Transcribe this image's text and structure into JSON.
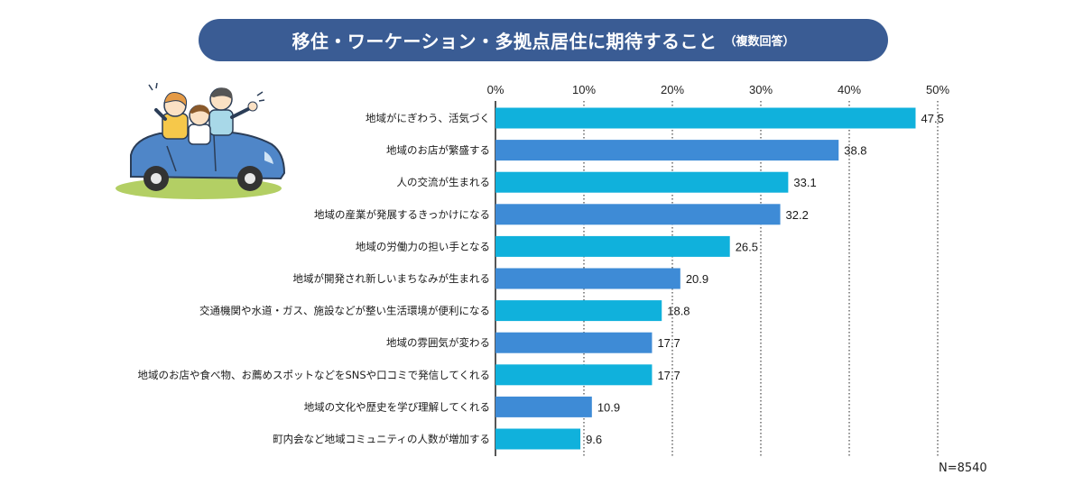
{
  "header": {
    "title": "移住・ワーケーション・多拠点居住に期待すること",
    "subtitle": "（複数回答）"
  },
  "colors": {
    "title_bg": "#3a5c94",
    "bar_cyan": "#10b1dc",
    "bar_blue": "#3e8bd6",
    "grid": "#1f1f1f"
  },
  "illustration": {
    "icon": "family-in-car-icon"
  },
  "chart_data": {
    "type": "bar",
    "orientation": "horizontal",
    "categories": [
      "地域がにぎわう、活気づく",
      "地域のお店が繁盛する",
      "人の交流が生まれる",
      "地域の産業が発展するきっかけになる",
      "地域の労働力の担い手となる",
      "地域が開発され新しいまちなみが生まれる",
      "交通機関や水道・ガス、施設などが整い生活環境が便利になる",
      "地域の雰囲気が変わる",
      "地域のお店や食べ物、お薦めスポットなどをSNSや口コミで発信してくれる",
      "地域の文化や歴史を学び理解してくれる",
      "町内会など地域コミュニティの人数が増加する"
    ],
    "values": [
      47.5,
      38.8,
      33.1,
      32.2,
      26.5,
      20.9,
      18.8,
      17.7,
      17.7,
      10.9,
      9.6
    ],
    "value_labels": [
      "47.5",
      "38.8",
      "33.1",
      "32.2",
      "26.5",
      "20.9",
      "18.8",
      "17.7",
      "17.7",
      "10.9",
      "9.6"
    ],
    "xlim": [
      0,
      50
    ],
    "ticks": [
      0,
      10,
      20,
      30,
      40,
      50
    ],
    "tick_labels": [
      "0%",
      "10%",
      "20%",
      "30%",
      "40%",
      "50%"
    ],
    "grid": true,
    "sample_note": "N=8540"
  }
}
